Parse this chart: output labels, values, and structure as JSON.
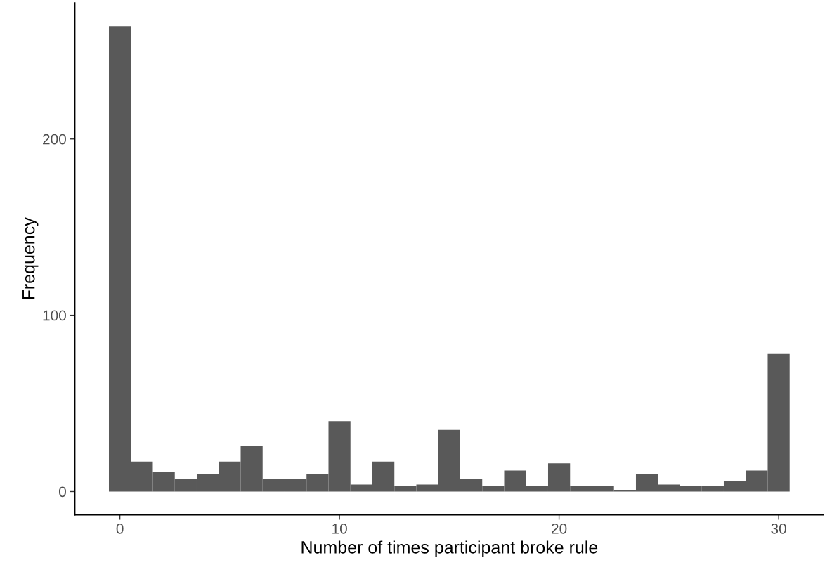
{
  "chart_data": {
    "type": "histogram",
    "xlabel": "Number of times participant broke rule",
    "ylabel": "Frequency",
    "color": "#595959",
    "bins": [
      -0.5,
      0.5,
      1.5,
      2.5,
      3.5,
      4.5,
      5.5,
      6.5,
      7.5,
      8.5,
      9.5,
      10.5,
      11.5,
      12.5,
      13.5,
      14.5,
      15.5,
      16.5,
      17.5,
      18.5,
      19.5,
      20.5,
      21.5,
      22.5,
      23.5,
      24.5,
      25.5,
      26.5,
      27.5,
      28.5,
      29.5,
      30.5
    ],
    "values": [
      264,
      17,
      11,
      7,
      10,
      17,
      26,
      7,
      7,
      10,
      40,
      4,
      17,
      3,
      4,
      35,
      7,
      3,
      12,
      3,
      16,
      3,
      3,
      1,
      10,
      4,
      3,
      3,
      6,
      12,
      78
    ],
    "xlim": [
      -2.05,
      32.05
    ],
    "ylim": [
      -13.2,
      277.2
    ],
    "xticks": [
      0,
      10,
      20,
      30
    ],
    "yticks": [
      0,
      100,
      200
    ],
    "grid": false
  }
}
